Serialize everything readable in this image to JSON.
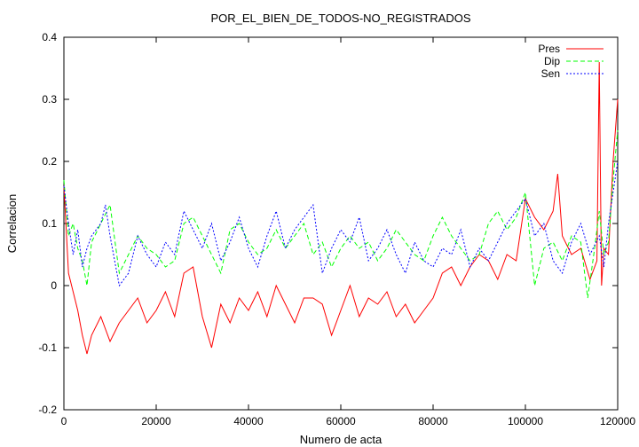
{
  "chart_data": {
    "type": "line",
    "title": "POR_EL_BIEN_DE_TODOS-NO_REGISTRADOS",
    "xlabel": "Numero de acta",
    "ylabel": "Correlacion",
    "xlim": [
      0,
      120000
    ],
    "ylim": [
      -0.2,
      0.4
    ],
    "xticks": [
      0,
      20000,
      40000,
      60000,
      80000,
      100000,
      120000
    ],
    "yticks": [
      -0.2,
      -0.1,
      0,
      0.1,
      0.2,
      0.3,
      0.4
    ],
    "grid": false,
    "legend_position": "top-right",
    "series": [
      {
        "name": "Pres",
        "color": "#ff0000",
        "dash": "solid",
        "x": [
          0,
          1000,
          2000,
          3000,
          4000,
          5000,
          6000,
          8000,
          10000,
          12000,
          14000,
          16000,
          18000,
          20000,
          22000,
          24000,
          26000,
          28000,
          30000,
          32000,
          34000,
          36000,
          38000,
          40000,
          42000,
          44000,
          46000,
          48000,
          50000,
          52000,
          54000,
          56000,
          58000,
          60000,
          62000,
          64000,
          66000,
          68000,
          70000,
          72000,
          74000,
          76000,
          78000,
          80000,
          82000,
          84000,
          86000,
          88000,
          90000,
          92000,
          94000,
          96000,
          98000,
          100000,
          102000,
          104000,
          106000,
          107000,
          108000,
          110000,
          112000,
          114000,
          115500,
          116000,
          116500,
          117000,
          118000,
          119000,
          120000
        ],
        "y": [
          0.16,
          0.02,
          -0.01,
          -0.04,
          -0.08,
          -0.11,
          -0.08,
          -0.05,
          -0.09,
          -0.06,
          -0.04,
          -0.02,
          -0.06,
          -0.04,
          -0.01,
          -0.05,
          0.02,
          0.03,
          -0.05,
          -0.1,
          -0.03,
          -0.06,
          -0.02,
          -0.04,
          -0.01,
          -0.05,
          0.0,
          -0.03,
          -0.06,
          -0.02,
          -0.02,
          -0.03,
          -0.08,
          -0.04,
          0.0,
          -0.05,
          -0.02,
          -0.03,
          -0.01,
          -0.05,
          -0.03,
          -0.06,
          -0.04,
          -0.02,
          0.02,
          0.03,
          0.0,
          0.03,
          0.05,
          0.04,
          0.01,
          0.05,
          0.04,
          0.14,
          0.11,
          0.09,
          0.12,
          0.18,
          0.08,
          0.05,
          0.06,
          0.01,
          0.04,
          0.36,
          0.0,
          0.06,
          0.05,
          0.2,
          0.3
        ]
      },
      {
        "name": "Dip",
        "color": "#00ff00",
        "dash": "5,3",
        "x": [
          0,
          1000,
          2000,
          3000,
          4000,
          5000,
          6000,
          8000,
          10000,
          12000,
          14000,
          16000,
          18000,
          20000,
          22000,
          24000,
          26000,
          28000,
          30000,
          32000,
          34000,
          36000,
          38000,
          40000,
          42000,
          44000,
          46000,
          48000,
          50000,
          52000,
          54000,
          56000,
          58000,
          60000,
          62000,
          64000,
          66000,
          68000,
          70000,
          72000,
          74000,
          76000,
          78000,
          80000,
          82000,
          84000,
          86000,
          88000,
          90000,
          92000,
          94000,
          96000,
          98000,
          100000,
          102000,
          104000,
          106000,
          108000,
          110000,
          112000,
          113500,
          115000,
          116000,
          117000,
          118000,
          119000,
          120000
        ],
        "y": [
          0.17,
          0.08,
          0.1,
          0.06,
          0.04,
          0.0,
          0.07,
          0.1,
          0.13,
          0.02,
          0.05,
          0.08,
          0.06,
          0.05,
          0.03,
          0.04,
          0.1,
          0.11,
          0.08,
          0.05,
          0.02,
          0.09,
          0.1,
          0.07,
          0.05,
          0.06,
          0.09,
          0.06,
          0.08,
          0.1,
          0.05,
          0.07,
          0.03,
          0.06,
          0.08,
          0.06,
          0.07,
          0.04,
          0.06,
          0.09,
          0.07,
          0.05,
          0.04,
          0.08,
          0.11,
          0.08,
          0.06,
          0.04,
          0.05,
          0.1,
          0.12,
          0.09,
          0.11,
          0.15,
          0.0,
          0.06,
          0.07,
          0.04,
          0.08,
          0.07,
          -0.02,
          0.06,
          0.12,
          0.05,
          0.07,
          0.17,
          0.25
        ]
      },
      {
        "name": "Sen",
        "color": "#0000ff",
        "dash": "2,2",
        "x": [
          0,
          1000,
          2000,
          3000,
          4000,
          5000,
          6000,
          8000,
          9000,
          10000,
          12000,
          14000,
          16000,
          18000,
          20000,
          22000,
          24000,
          26000,
          28000,
          30000,
          32000,
          34000,
          36000,
          38000,
          40000,
          42000,
          44000,
          46000,
          48000,
          50000,
          52000,
          54000,
          56000,
          58000,
          60000,
          62000,
          64000,
          66000,
          68000,
          70000,
          72000,
          74000,
          76000,
          78000,
          80000,
          82000,
          84000,
          86000,
          88000,
          90000,
          92000,
          94000,
          96000,
          98000,
          100000,
          102000,
          104000,
          106000,
          108000,
          110000,
          112000,
          114000,
          116000,
          117000,
          118000,
          119000,
          120000
        ],
        "y": [
          0.16,
          0.1,
          0.05,
          0.09,
          0.03,
          0.06,
          0.08,
          0.1,
          0.13,
          0.08,
          0.0,
          0.02,
          0.08,
          0.05,
          0.03,
          0.07,
          0.05,
          0.12,
          0.09,
          0.06,
          0.1,
          0.04,
          0.07,
          0.11,
          0.06,
          0.03,
          0.08,
          0.12,
          0.06,
          0.09,
          0.11,
          0.13,
          0.02,
          0.06,
          0.09,
          0.07,
          0.11,
          0.04,
          0.06,
          0.09,
          0.05,
          0.02,
          0.07,
          0.04,
          0.03,
          0.06,
          0.05,
          0.09,
          0.03,
          0.06,
          0.04,
          0.07,
          0.1,
          0.12,
          0.14,
          0.08,
          0.1,
          0.04,
          0.02,
          0.07,
          0.1,
          0.05,
          0.08,
          0.03,
          0.1,
          0.15,
          0.2
        ]
      }
    ]
  }
}
